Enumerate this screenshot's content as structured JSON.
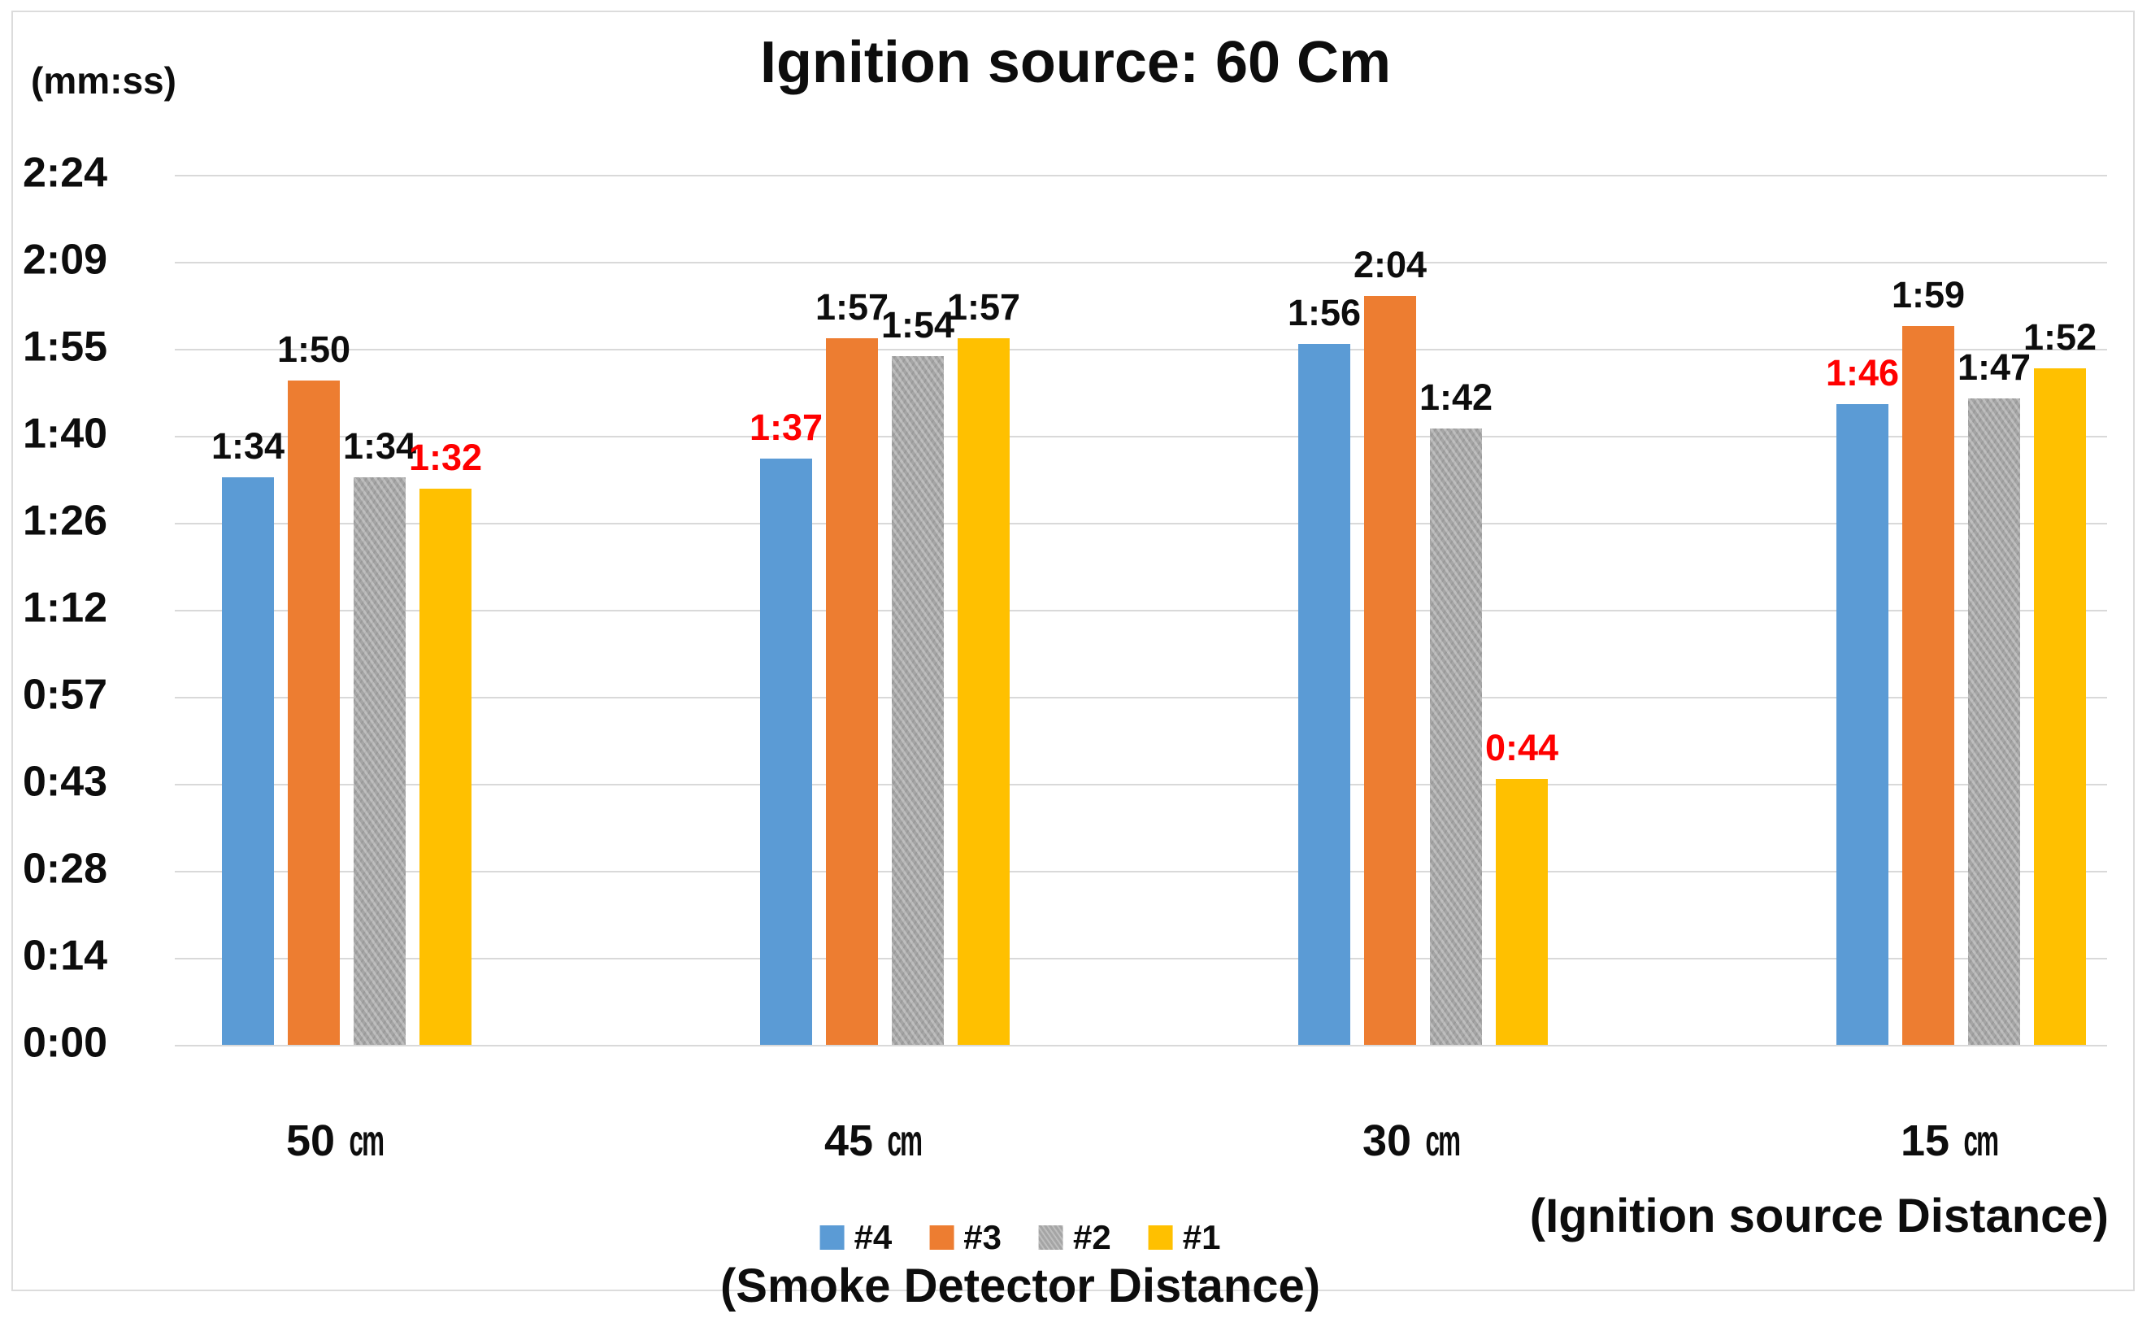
{
  "figure": {
    "title": "Ignition source: 60 Cm",
    "y_unit_label": "(mm:ss)",
    "x_axis_caption": "(Smoke Detector Distance)",
    "x_axis_caption_right": "(Ignition source Distance)"
  },
  "colors": {
    "series_4_blue": "#5B9BD5",
    "series_3_orange": "#ED7D31",
    "series_2_gray": "#A5A5A5",
    "series_1_yellow": "#FFC000",
    "emphasis_label_red": "#FF0000",
    "gridline": "#D9D9D9",
    "text": "#0D0D0D"
  },
  "chart_data": {
    "type": "bar",
    "title": "Ignition source: 60 Cm",
    "ylabel": "(mm:ss)",
    "xlabel": "(Smoke Detector Distance)",
    "xlabel_right": "(Ignition source Distance)",
    "grid": true,
    "legend_position": "bottom",
    "y_ticks": [
      "2:24",
      "2:09",
      "1:55",
      "1:40",
      "1:26",
      "1:12",
      "0:57",
      "0:43",
      "0:28",
      "0:14",
      "0:00"
    ],
    "y_axis_max_seconds": 144,
    "categories": [
      "50 cm",
      "45 cm",
      "30 cm",
      "15 cm"
    ],
    "series": [
      {
        "name": "#4",
        "color": "#5B9BD5",
        "patterned": false,
        "points": [
          {
            "category": "50 cm",
            "label": "1:34",
            "seconds": 94,
            "emphasis": false
          },
          {
            "category": "45 cm",
            "label": "1:37",
            "seconds": 97,
            "emphasis": true
          },
          {
            "category": "30 cm",
            "label": "1:56",
            "seconds": 116,
            "emphasis": false
          },
          {
            "category": "15 cm",
            "label": "1:46",
            "seconds": 106,
            "emphasis": true
          }
        ]
      },
      {
        "name": "#3",
        "color": "#ED7D31",
        "patterned": false,
        "points": [
          {
            "category": "50 cm",
            "label": "1:50",
            "seconds": 110,
            "emphasis": false
          },
          {
            "category": "45 cm",
            "label": "1:57",
            "seconds": 117,
            "emphasis": false
          },
          {
            "category": "30 cm",
            "label": "2:04",
            "seconds": 124,
            "emphasis": false
          },
          {
            "category": "15 cm",
            "label": "1:59",
            "seconds": 119,
            "emphasis": false
          }
        ]
      },
      {
        "name": "#2",
        "color": "#A5A5A5",
        "patterned": true,
        "points": [
          {
            "category": "50 cm",
            "label": "1:34",
            "seconds": 94,
            "emphasis": false
          },
          {
            "category": "45 cm",
            "label": "1:54",
            "seconds": 114,
            "emphasis": false
          },
          {
            "category": "30 cm",
            "label": "1:42",
            "seconds": 102,
            "emphasis": false
          },
          {
            "category": "15 cm",
            "label": "1:47",
            "seconds": 107,
            "emphasis": false
          }
        ]
      },
      {
        "name": "#1",
        "color": "#FFC000",
        "patterned": false,
        "points": [
          {
            "category": "50 cm",
            "label": "1:32",
            "seconds": 92,
            "emphasis": true
          },
          {
            "category": "45 cm",
            "label": "1:57",
            "seconds": 117,
            "emphasis": false
          },
          {
            "category": "30 cm",
            "label": "0:44",
            "seconds": 44,
            "emphasis": true
          },
          {
            "category": "15 cm",
            "label": "1:52",
            "seconds": 112,
            "emphasis": false
          }
        ]
      }
    ],
    "legend": [
      {
        "name": "#4",
        "color": "#5B9BD5",
        "patterned": false
      },
      {
        "name": "#3",
        "color": "#ED7D31",
        "patterned": false
      },
      {
        "name": "#2",
        "color": "#A5A5A5",
        "patterned": true
      },
      {
        "name": "#1",
        "color": "#FFC000",
        "patterned": false
      }
    ]
  }
}
